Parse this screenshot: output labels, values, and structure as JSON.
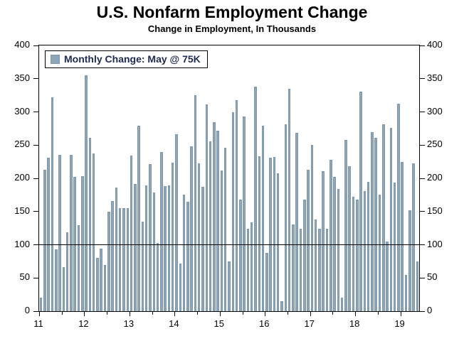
{
  "header": {
    "title": "U.S. Nonfarm Employment Change",
    "subtitle": "Change in Employment, In Thousands"
  },
  "legend": {
    "label": "Monthly Change: May @ 75K"
  },
  "colors": {
    "bar_fill": "#8FA6B8",
    "bar_edge": "#7E96A9",
    "legend_text": "#1F2A50",
    "axis": "#000000",
    "background": "#FFFFFF"
  },
  "chart_data": {
    "type": "bar",
    "title": "U.S. Nonfarm Employment Change",
    "subtitle": "Change in Employment, In Thousands",
    "unit": "thousands of jobs",
    "start_month": "2011-01",
    "end_month": "2019-05",
    "legend_entry": "Monthly Change: May @ 75K",
    "latest_value_callout": 75,
    "ylim": [
      0,
      400
    ],
    "y_ticks": [
      0,
      50,
      100,
      150,
      200,
      250,
      300,
      350,
      400
    ],
    "reference_line_y": 100,
    "x_tick_labels": [
      "11",
      "12",
      "13",
      "14",
      "15",
      "16",
      "17",
      "18",
      "19"
    ],
    "grid": "off",
    "legend_position": "upper-left",
    "series": [
      {
        "name": "Monthly Change",
        "values": [
          20,
          213,
          231,
          322,
          93,
          235,
          66,
          119,
          235,
          202,
          129,
          203,
          355,
          261,
          237,
          80,
          94,
          69,
          150,
          166,
          186,
          155,
          155,
          155,
          234,
          191,
          279,
          135,
          189,
          221,
          179,
          103,
          240,
          188,
          189,
          224,
          266,
          72,
          175,
          165,
          248,
          325,
          222,
          187,
          311,
          256,
          285,
          272,
          212,
          246,
          75,
          300,
          318,
          168,
          293,
          124,
          134,
          338,
          233,
          279,
          88,
          231,
          232,
          208,
          15,
          281,
          335,
          131,
          269,
          124,
          168,
          213,
          250,
          138,
          124,
          211,
          124,
          228,
          202,
          184,
          20,
          258,
          218,
          172,
          168,
          330,
          181,
          195,
          270,
          261,
          175,
          281,
          105,
          276,
          194,
          312,
          225,
          55,
          152,
          222,
          75
        ]
      }
    ]
  }
}
